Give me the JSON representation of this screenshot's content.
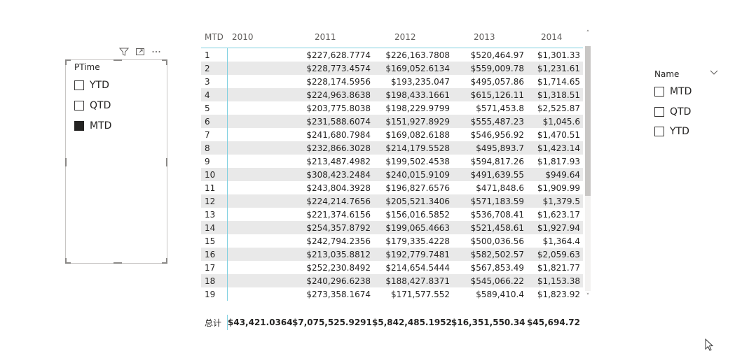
{
  "left_slicer": {
    "title": "PTime",
    "options": [
      {
        "label": "YTD",
        "checked": false
      },
      {
        "label": "QTD",
        "checked": false
      },
      {
        "label": "MTD",
        "checked": true
      }
    ]
  },
  "table": {
    "headers": [
      "MTD",
      "2010",
      "2011",
      "2012",
      "2013",
      "2014"
    ],
    "rows": [
      [
        "1",
        "",
        "$227,628.7774",
        "$226,163.7808",
        "$520,464.97",
        "$1,301.33"
      ],
      [
        "2",
        "",
        "$228,773.4574",
        "$169,052.6134",
        "$559,009.78",
        "$1,231.61"
      ],
      [
        "3",
        "",
        "$228,174.5956",
        "$193,235.047",
        "$495,057.86",
        "$1,714.65"
      ],
      [
        "4",
        "",
        "$224,963.8638",
        "$198,433.1661",
        "$615,126.11",
        "$1,318.51"
      ],
      [
        "5",
        "",
        "$203,775.8038",
        "$198,229.9799",
        "$571,453.8",
        "$2,525.87"
      ],
      [
        "6",
        "",
        "$231,588.6074",
        "$151,927.8929",
        "$555,487.23",
        "$1,045.6"
      ],
      [
        "7",
        "",
        "$241,680.7984",
        "$169,082.6188",
        "$546,956.92",
        "$1,470.51"
      ],
      [
        "8",
        "",
        "$232,866.3028",
        "$214,179.5528",
        "$495,893.7",
        "$1,423.14"
      ],
      [
        "9",
        "",
        "$213,487.4982",
        "$199,502.4538",
        "$594,817.26",
        "$1,817.93"
      ],
      [
        "10",
        "",
        "$308,423.2484",
        "$240,015.9109",
        "$491,639.55",
        "$949.64"
      ],
      [
        "11",
        "",
        "$243,804.3928",
        "$196,827.6576",
        "$471,848.6",
        "$1,909.99"
      ],
      [
        "12",
        "",
        "$224,214.7656",
        "$205,521.3406",
        "$571,183.59",
        "$1,379.5"
      ],
      [
        "13",
        "",
        "$221,374.6156",
        "$156,016.5852",
        "$536,708.41",
        "$1,623.17"
      ],
      [
        "14",
        "",
        "$254,357.8792",
        "$199,065.4663",
        "$521,458.61",
        "$1,927.94"
      ],
      [
        "15",
        "",
        "$242,794.2356",
        "$179,335.4228",
        "$500,036.56",
        "$1,364.4"
      ],
      [
        "16",
        "",
        "$213,035.8812",
        "$192,779.7481",
        "$582,502.57",
        "$2,059.63"
      ],
      [
        "17",
        "",
        "$252,230.8492",
        "$214,654.5444",
        "$567,853.49",
        "$1,821.77"
      ],
      [
        "18",
        "",
        "$240,296.6238",
        "$188,427.8371",
        "$545,066.22",
        "$1,153.38"
      ],
      [
        "19",
        "",
        "$273,358.1674",
        "$171,577.552",
        "$589,410.4",
        "$1,823.92"
      ]
    ],
    "total": [
      "总计",
      "$43,421.0364",
      "$7,075,525.9291",
      "$5,842,485.1952",
      "$16,351,550.34",
      "$45,694.72"
    ]
  },
  "right_slicer": {
    "title": "Name",
    "options": [
      {
        "label": "MTD",
        "checked": false
      },
      {
        "label": "QTD",
        "checked": false
      },
      {
        "label": "YTD",
        "checked": false
      }
    ]
  },
  "icons": {
    "filter": "filter-icon",
    "focus": "focus-mode-icon",
    "more": "more-options-icon",
    "chevron": "chevron-down-icon",
    "cursor": "mouse-cursor-icon"
  },
  "colors": {
    "accent_line": "#7fd0e0",
    "band_row": "#e9e9e9",
    "text": "#252423"
  }
}
